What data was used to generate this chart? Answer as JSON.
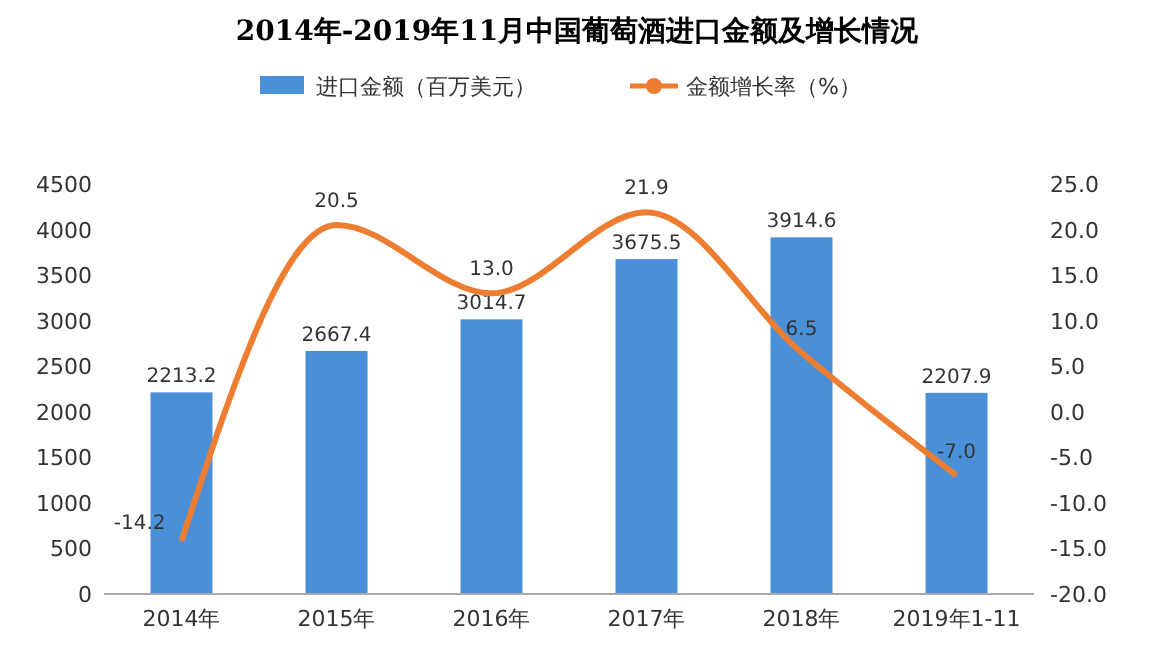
{
  "chart_data": {
    "type": "bar",
    "title": "2014年-2019年11月中国葡萄酒进口金额及增长情况",
    "categories": [
      "2014年",
      "2015年",
      "2016年",
      "2017年",
      "2018年",
      "2019年1-11"
    ],
    "series": [
      {
        "name": "进口金额（百万美元）",
        "color": "#4a90d9",
        "values": [
          2213.2,
          2667.4,
          3014.7,
          3675.5,
          3914.6,
          2207.9
        ],
        "value_labels": [
          "2213.2",
          "2667.4",
          "3014.7",
          "3675.5",
          "3914.6",
          "2207.9"
        ]
      },
      {
        "name": "金额增长率（%）",
        "type": "line",
        "axis": "y2",
        "color": "#ed7d31",
        "values": [
          -14.2,
          20.5,
          13.0,
          21.9,
          6.5,
          -7.0
        ],
        "value_labels": [
          "-14.2",
          "20.5",
          "13.0",
          "21.9",
          "6.5",
          "-7.0"
        ]
      }
    ],
    "ylim": [
      0,
      4500
    ],
    "yticks": [
      0,
      500,
      1000,
      1500,
      2000,
      2500,
      3000,
      3500,
      4000,
      4500
    ],
    "y2lim": [
      -20,
      25
    ],
    "y2ticks": [
      {
        "value": -20,
        "label": "-20.0"
      },
      {
        "value": -15,
        "label": "-15.0"
      },
      {
        "value": -10,
        "label": "-10.0"
      },
      {
        "value": -5,
        "label": "-5.0"
      },
      {
        "value": 0,
        "label": "0.0"
      },
      {
        "value": 5,
        "label": "5.0"
      },
      {
        "value": 10,
        "label": "10.0"
      },
      {
        "value": 15,
        "label": "15.0"
      },
      {
        "value": 20,
        "label": "20.0"
      },
      {
        "value": 25,
        "label": "25.0"
      }
    ],
    "legend": "top",
    "grid": false
  }
}
